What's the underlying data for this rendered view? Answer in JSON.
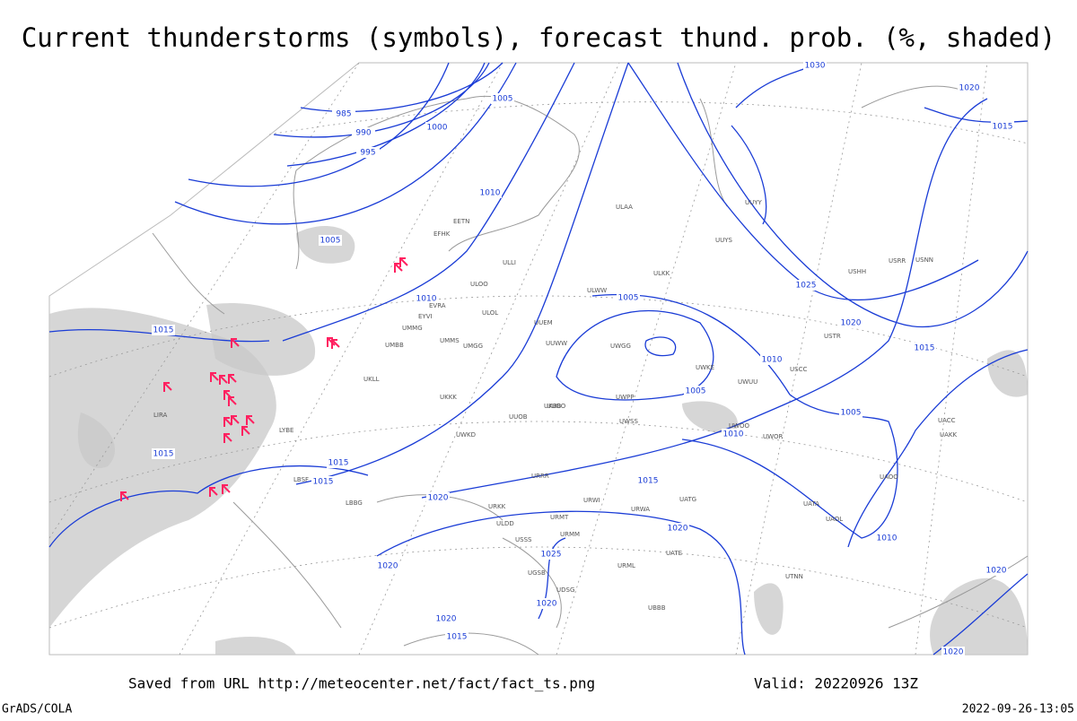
{
  "title": "Current thunderstorms (symbols), forecast thund. prob. (%, shaded)",
  "footer": {
    "source": "Saved from URL http://meteocenter.net/fact/fact_ts.png",
    "valid": "Valid: 20220926 13Z",
    "credit": "GrADS/COLA",
    "timestamp": "2022-09-26-13:05"
  },
  "isobar_labels": [
    "985",
    "990",
    "995",
    "1000",
    "1005",
    "1010",
    "1005",
    "1010",
    "1015",
    "1015",
    "1015",
    "1015",
    "1015",
    "1020",
    "1020",
    "1025",
    "1020",
    "1020",
    "1020",
    "1015",
    "1005",
    "1005",
    "1010",
    "1010",
    "1005",
    "1010",
    "1025",
    "1020",
    "1015",
    "1015",
    "1020",
    "1030",
    "1020",
    "1020"
  ],
  "stations": [
    "ULAA",
    "ULLI",
    "ULOO",
    "ULOL",
    "UUEM",
    "UUWW",
    "UMMS",
    "UMGG",
    "UKLL",
    "UKKK",
    "UKBB",
    "UUOB",
    "UUOO",
    "UWPP",
    "UWKD",
    "UWGG",
    "UWSS",
    "URRR",
    "URWI",
    "URWA",
    "UATG",
    "UATE",
    "URML",
    "UBBB",
    "UGSB",
    "UDSG",
    "USSS",
    "USCC",
    "UUYY",
    "UUYS",
    "USHH",
    "USRR",
    "USNN",
    "USTR",
    "UACC",
    "UAKK",
    "UAOO",
    "UAOL",
    "UATA",
    "UTNN",
    "EVRA",
    "EYVI",
    "UMMG",
    "UMBB",
    "EETN",
    "EFHK",
    "LIRA",
    "LYBE",
    "LBSF",
    "LBBG",
    "URKK",
    "URMT",
    "URMM",
    "ULDD",
    "ULWW",
    "ULKK",
    "UWUU",
    "UWKE",
    "UWOO",
    "UWOR"
  ]
}
